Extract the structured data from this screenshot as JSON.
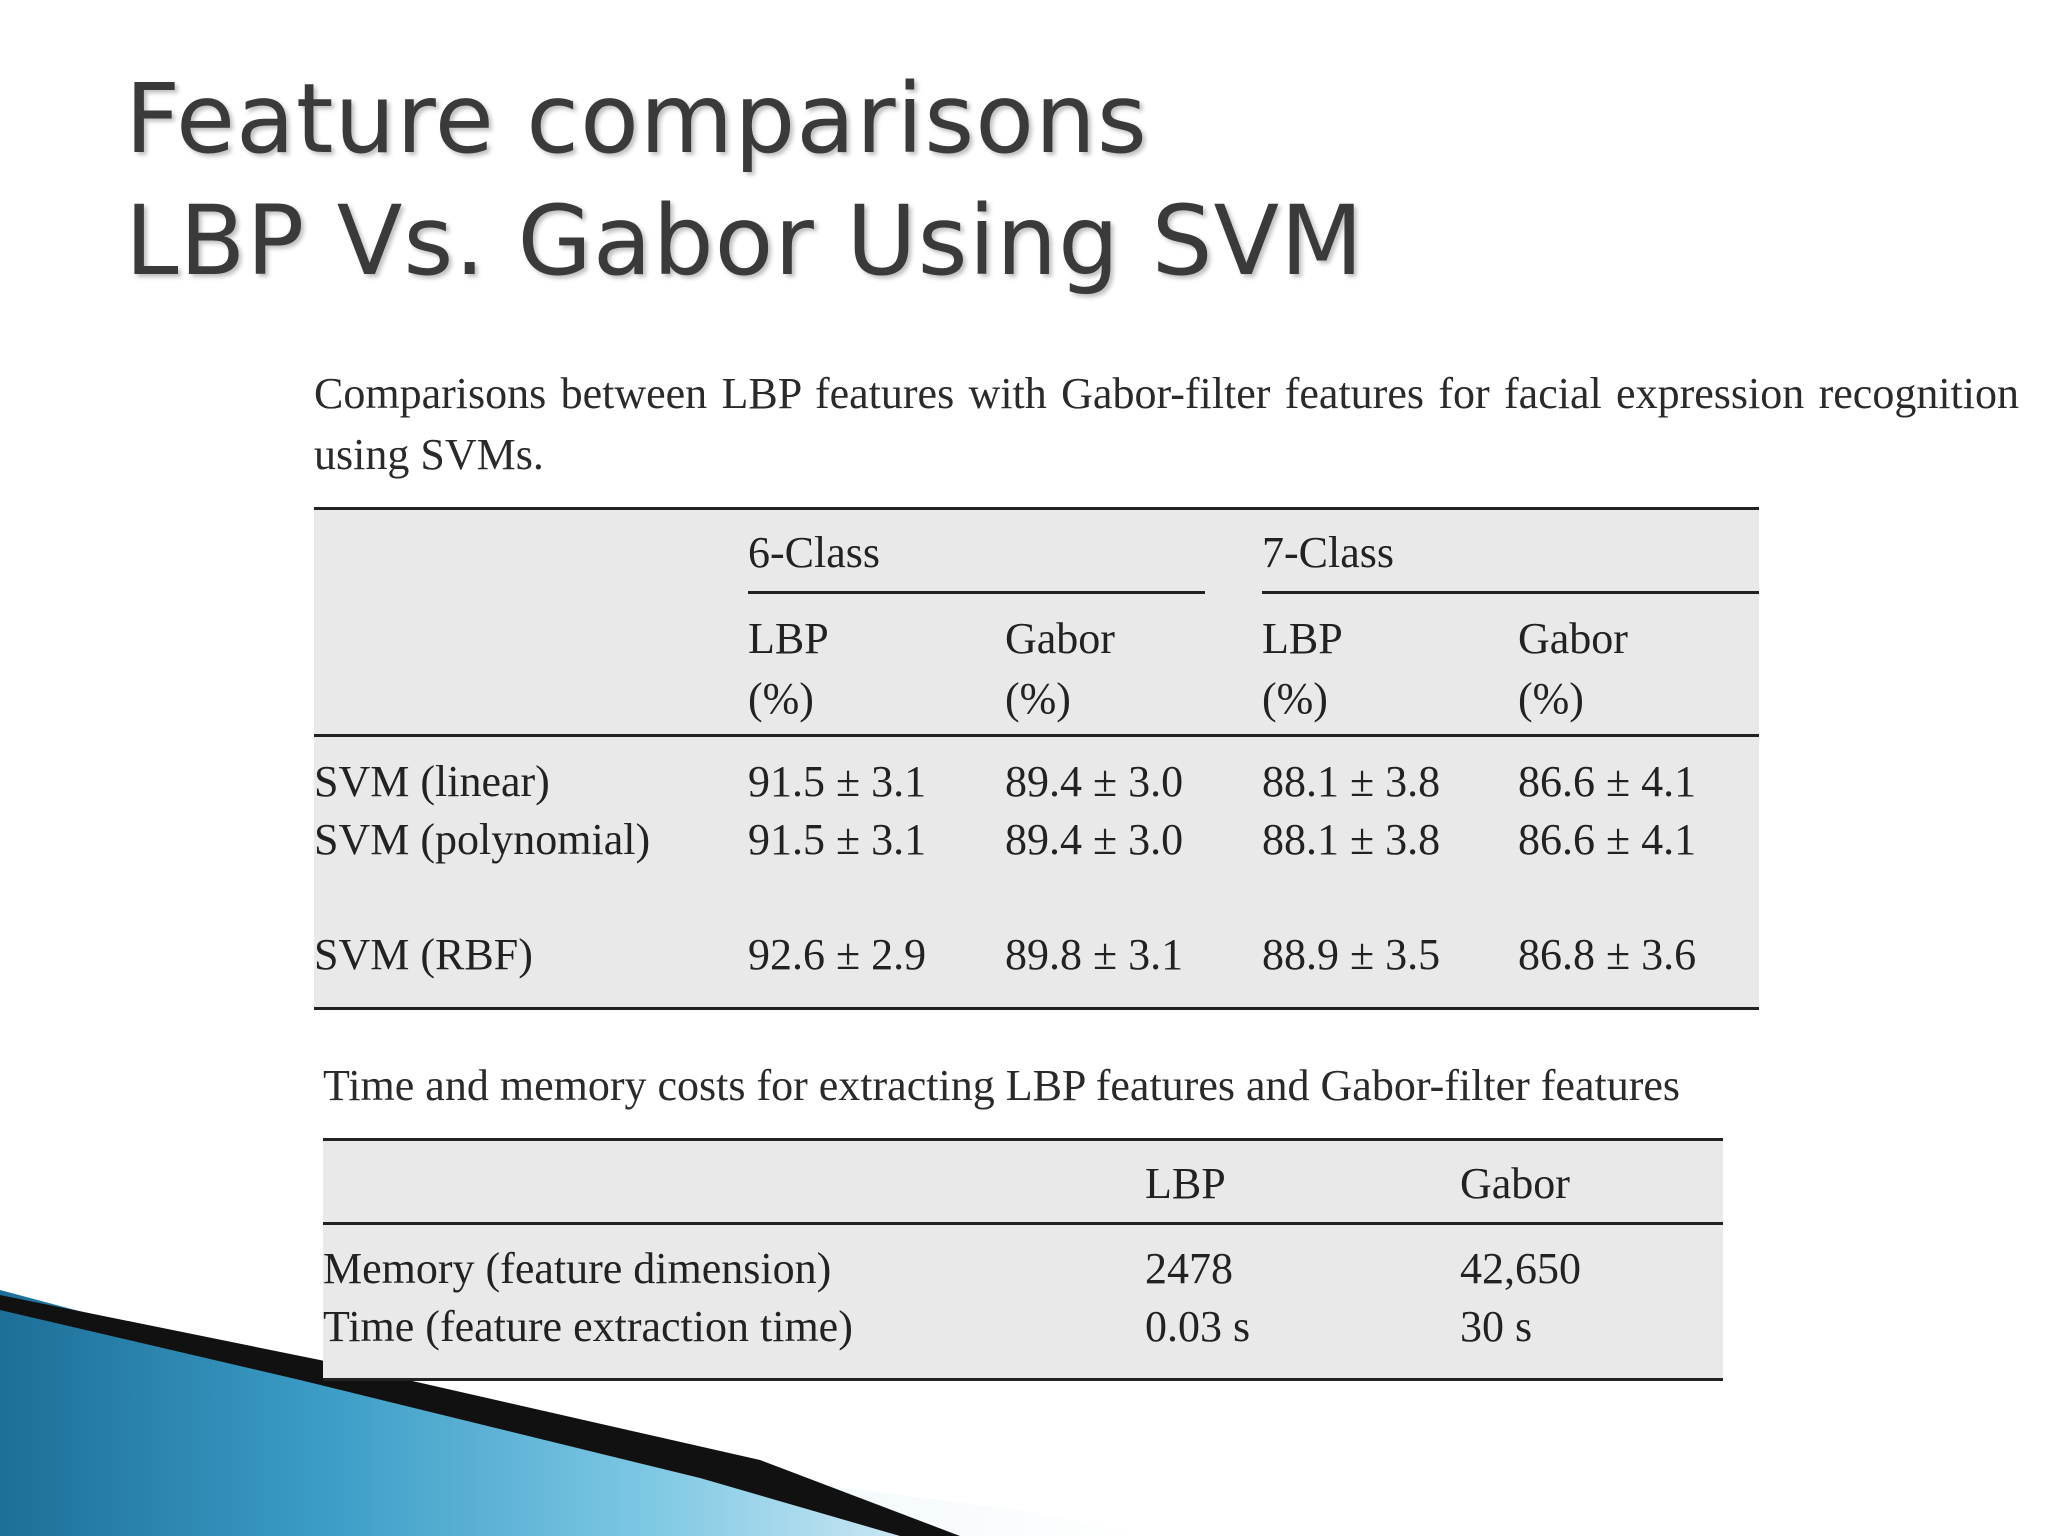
{
  "title": {
    "line1": "Feature comparisons",
    "line2": "LBP Vs. Gabor Using SVM"
  },
  "table1": {
    "caption": "Comparisons between LBP features with Gabor-filter features for facial expression recognition using SVMs.",
    "groups": [
      "6-Class",
      "7-Class"
    ],
    "columns": [
      {
        "name": "LBP",
        "unit": "(%)"
      },
      {
        "name": "Gabor",
        "unit": "(%)"
      },
      {
        "name": "LBP",
        "unit": "(%)"
      },
      {
        "name": "Gabor",
        "unit": "(%)"
      }
    ],
    "rows": [
      {
        "label": "SVM (linear)",
        "values": [
          "91.5 ± 3.1",
          "89.4 ± 3.0",
          "88.1 ± 3.8",
          "86.6 ± 4.1"
        ]
      },
      {
        "label": "SVM (polynomial)",
        "values": [
          "91.5 ± 3.1",
          "89.4 ± 3.0",
          "88.1 ± 3.8",
          "86.6 ± 4.1"
        ]
      },
      {
        "label": "SVM (RBF)",
        "values": [
          "92.6 ± 2.9",
          "89.8 ± 3.1",
          "88.9 ± 3.5",
          "86.8 ± 3.6"
        ]
      }
    ]
  },
  "table2": {
    "caption": "Time and memory costs for extracting LBP features and Gabor-filter features",
    "columns": [
      "LBP",
      "Gabor"
    ],
    "rows": [
      {
        "label": "Memory (feature dimension)",
        "values": [
          "2478",
          "42,650"
        ]
      },
      {
        "label": "Time (feature extraction time)",
        "values": [
          "0.03 s",
          "30 s"
        ]
      }
    ]
  },
  "colors": {
    "background": "#ffffff",
    "table_fill": "#e9e9e9",
    "accent_blue": "#2a8fc0"
  }
}
